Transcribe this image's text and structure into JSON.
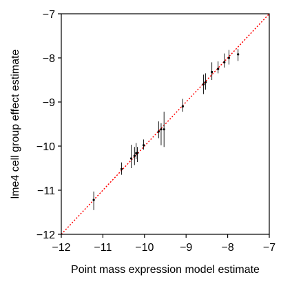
{
  "chart_data": {
    "type": "scatter",
    "title": "",
    "xlabel": "Point mass expression model estimate",
    "ylabel": "lme4 cell group effect estimate",
    "xlim": [
      -12,
      -7
    ],
    "ylim": [
      -12,
      -7
    ],
    "xticks": [
      -12,
      -11,
      -10,
      -9,
      -8,
      -7
    ],
    "yticks": [
      -12,
      -11,
      -10,
      -9,
      -8,
      -7
    ],
    "xtick_labels": [
      "−12",
      "−11",
      "−10",
      "−9",
      "−8",
      "−7"
    ],
    "ytick_labels": [
      "−12",
      "−11",
      "−10",
      "−9",
      "−8",
      "−7"
    ],
    "grid": false,
    "reference_line": {
      "type": "identity",
      "style": "dotted",
      "color": "#ff0000"
    },
    "point_color": "#000000",
    "points": [
      {
        "x": -11.22,
        "y": -11.22,
        "lo": -11.45,
        "hi": -11.03
      },
      {
        "x": -10.55,
        "y": -10.52,
        "lo": -10.65,
        "hi": -10.37
      },
      {
        "x": -10.32,
        "y": -10.28,
        "lo": -10.5,
        "hi": -9.97
      },
      {
        "x": -10.24,
        "y": -10.22,
        "lo": -10.43,
        "hi": -10.02
      },
      {
        "x": -10.2,
        "y": -10.16,
        "lo": -10.3,
        "hi": -9.93
      },
      {
        "x": -10.17,
        "y": -10.16,
        "lo": -10.36,
        "hi": -10.02
      },
      {
        "x": -10.02,
        "y": -9.98,
        "lo": -10.08,
        "hi": -9.85
      },
      {
        "x": -9.66,
        "y": -9.67,
        "lo": -9.82,
        "hi": -9.44
      },
      {
        "x": -9.6,
        "y": -9.62,
        "lo": -9.98,
        "hi": -9.48
      },
      {
        "x": -9.53,
        "y": -9.62,
        "lo": -10.02,
        "hi": -9.22
      },
      {
        "x": -9.08,
        "y": -9.1,
        "lo": -9.22,
        "hi": -8.93
      },
      {
        "x": -8.58,
        "y": -8.6,
        "lo": -8.82,
        "hi": -8.38
      },
      {
        "x": -8.53,
        "y": -8.55,
        "lo": -8.72,
        "hi": -8.35
      },
      {
        "x": -8.38,
        "y": -8.32,
        "lo": -8.5,
        "hi": -8.1
      },
      {
        "x": -8.23,
        "y": -8.25,
        "lo": -8.35,
        "hi": -8.08
      },
      {
        "x": -8.08,
        "y": -8.1,
        "lo": -8.22,
        "hi": -7.9
      },
      {
        "x": -7.97,
        "y": -8.0,
        "lo": -8.15,
        "hi": -7.82
      },
      {
        "x": -7.75,
        "y": -7.92,
        "lo": -8.07,
        "hi": -7.8
      }
    ]
  }
}
